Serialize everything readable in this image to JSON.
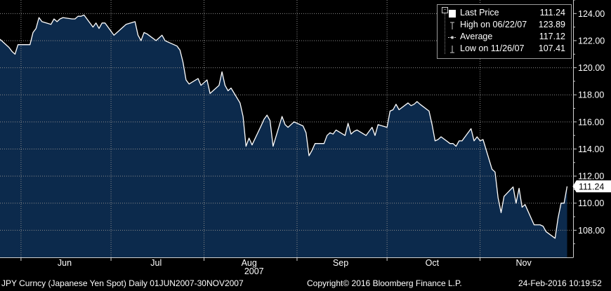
{
  "chart_data": {
    "type": "area",
    "title": "",
    "xlabel": "2007",
    "ylabel": "",
    "ylim": [
      106.0,
      125.0
    ],
    "y_ticks": [
      "108.00",
      "110.00",
      "112.00",
      "114.00",
      "116.00",
      "118.00",
      "120.00",
      "122.00",
      "124.00"
    ],
    "x_ticks": [
      {
        "label": "Jun",
        "date": "2007-06-01"
      },
      {
        "label": "Jul",
        "date": "2007-07-01"
      },
      {
        "label": "Aug",
        "date": "2007-08-01"
      },
      {
        "label": "Sep",
        "date": "2007-09-01"
      },
      {
        "label": "Oct",
        "date": "2007-10-01"
      },
      {
        "label": "Nov",
        "date": "2007-11-01"
      }
    ],
    "year_label": "2007",
    "grid": true,
    "last_price_tag": "111.24",
    "series": [
      {
        "name": "Last Price",
        "color": "#ffffff",
        "fill": "#0c2a4c",
        "points": [
          [
            "2007-05-25",
            122.1
          ],
          [
            "2007-05-28",
            121.5
          ],
          [
            "2007-05-29",
            121.2
          ],
          [
            "2007-05-30",
            121.0
          ],
          [
            "2007-05-31",
            121.7
          ],
          [
            "2007-06-01",
            121.7
          ],
          [
            "2007-06-04",
            121.7
          ],
          [
            "2007-06-05",
            122.6
          ],
          [
            "2007-06-06",
            122.9
          ],
          [
            "2007-06-07",
            123.7
          ],
          [
            "2007-06-08",
            123.4
          ],
          [
            "2007-06-11",
            123.2
          ],
          [
            "2007-06-12",
            123.6
          ],
          [
            "2007-06-13",
            123.4
          ],
          [
            "2007-06-14",
            123.6
          ],
          [
            "2007-06-15",
            123.7
          ],
          [
            "2007-06-18",
            123.6
          ],
          [
            "2007-06-19",
            123.6
          ],
          [
            "2007-06-20",
            123.8
          ],
          [
            "2007-06-21",
            123.8
          ],
          [
            "2007-06-22",
            123.89
          ],
          [
            "2007-06-25",
            123.0
          ],
          [
            "2007-06-26",
            123.3
          ],
          [
            "2007-06-27",
            122.9
          ],
          [
            "2007-06-28",
            123.3
          ],
          [
            "2007-06-29",
            123.3
          ],
          [
            "2007-07-02",
            122.4
          ],
          [
            "2007-07-03",
            122.6
          ],
          [
            "2007-07-04",
            122.8
          ],
          [
            "2007-07-05",
            123.0
          ],
          [
            "2007-07-06",
            123.2
          ],
          [
            "2007-07-09",
            123.4
          ],
          [
            "2007-07-10",
            122.4
          ],
          [
            "2007-07-11",
            122.0
          ],
          [
            "2007-07-12",
            122.6
          ],
          [
            "2007-07-13",
            122.5
          ],
          [
            "2007-07-16",
            122.0
          ],
          [
            "2007-07-17",
            122.2
          ],
          [
            "2007-07-18",
            122.4
          ],
          [
            "2007-07-19",
            122.0
          ],
          [
            "2007-07-20",
            121.9
          ],
          [
            "2007-07-23",
            121.6
          ],
          [
            "2007-07-24",
            121.3
          ],
          [
            "2007-07-25",
            120.4
          ],
          [
            "2007-07-26",
            119.1
          ],
          [
            "2007-07-27",
            118.8
          ],
          [
            "2007-07-30",
            119.2
          ],
          [
            "2007-07-31",
            118.7
          ],
          [
            "2007-08-01",
            118.9
          ],
          [
            "2007-08-02",
            119.1
          ],
          [
            "2007-08-03",
            118.1
          ],
          [
            "2007-08-06",
            118.7
          ],
          [
            "2007-08-07",
            119.7
          ],
          [
            "2007-08-08",
            118.7
          ],
          [
            "2007-08-09",
            118.3
          ],
          [
            "2007-08-10",
            118.5
          ],
          [
            "2007-08-13",
            117.4
          ],
          [
            "2007-08-14",
            116.4
          ],
          [
            "2007-08-15",
            114.2
          ],
          [
            "2007-08-16",
            114.8
          ],
          [
            "2007-08-17",
            114.3
          ],
          [
            "2007-08-20",
            115.7
          ],
          [
            "2007-08-21",
            116.2
          ],
          [
            "2007-08-22",
            116.5
          ],
          [
            "2007-08-23",
            116.1
          ],
          [
            "2007-08-24",
            114.2
          ],
          [
            "2007-08-27",
            116.4
          ],
          [
            "2007-08-28",
            115.8
          ],
          [
            "2007-08-29",
            115.6
          ],
          [
            "2007-08-30",
            115.8
          ],
          [
            "2007-08-31",
            116.0
          ],
          [
            "2007-09-03",
            115.7
          ],
          [
            "2007-09-04",
            115.2
          ],
          [
            "2007-09-05",
            113.5
          ],
          [
            "2007-09-06",
            113.9
          ],
          [
            "2007-09-07",
            114.4
          ],
          [
            "2007-09-10",
            114.4
          ],
          [
            "2007-09-11",
            115.0
          ],
          [
            "2007-09-12",
            115.2
          ],
          [
            "2007-09-13",
            115.1
          ],
          [
            "2007-09-14",
            115.4
          ],
          [
            "2007-09-17",
            115.0
          ],
          [
            "2007-09-18",
            115.9
          ],
          [
            "2007-09-19",
            115.1
          ],
          [
            "2007-09-20",
            115.3
          ],
          [
            "2007-09-21",
            115.4
          ],
          [
            "2007-09-24",
            115.0
          ],
          [
            "2007-09-25",
            115.3
          ],
          [
            "2007-09-26",
            115.6
          ],
          [
            "2007-09-27",
            115.0
          ],
          [
            "2007-09-28",
            115.8
          ],
          [
            "2007-10-01",
            115.6
          ],
          [
            "2007-10-02",
            116.8
          ],
          [
            "2007-10-03",
            116.9
          ],
          [
            "2007-10-04",
            117.3
          ],
          [
            "2007-10-05",
            116.9
          ],
          [
            "2007-10-08",
            117.4
          ],
          [
            "2007-10-09",
            117.2
          ],
          [
            "2007-10-10",
            117.3
          ],
          [
            "2007-10-11",
            117.5
          ],
          [
            "2007-10-12",
            117.3
          ],
          [
            "2007-10-15",
            116.8
          ],
          [
            "2007-10-16",
            115.8
          ],
          [
            "2007-10-17",
            114.6
          ],
          [
            "2007-10-18",
            114.7
          ],
          [
            "2007-10-19",
            114.9
          ],
          [
            "2007-10-22",
            114.4
          ],
          [
            "2007-10-23",
            114.4
          ],
          [
            "2007-10-24",
            114.2
          ],
          [
            "2007-10-25",
            114.6
          ],
          [
            "2007-10-26",
            114.6
          ],
          [
            "2007-10-29",
            115.5
          ],
          [
            "2007-10-30",
            114.6
          ],
          [
            "2007-10-31",
            114.9
          ],
          [
            "2007-11-01",
            114.6
          ],
          [
            "2007-11-02",
            114.7
          ],
          [
            "2007-11-05",
            112.5
          ],
          [
            "2007-11-06",
            112.3
          ],
          [
            "2007-11-07",
            110.4
          ],
          [
            "2007-11-08",
            109.3
          ],
          [
            "2007-11-09",
            110.5
          ],
          [
            "2007-11-12",
            111.2
          ],
          [
            "2007-11-13",
            110.0
          ],
          [
            "2007-11-14",
            111.1
          ],
          [
            "2007-11-15",
            109.7
          ],
          [
            "2007-11-16",
            109.9
          ],
          [
            "2007-11-19",
            108.4
          ],
          [
            "2007-11-20",
            108.4
          ],
          [
            "2007-11-21",
            108.4
          ],
          [
            "2007-11-22",
            108.3
          ],
          [
            "2007-11-23",
            107.9
          ],
          [
            "2007-11-26",
            107.41
          ],
          [
            "2007-11-27",
            108.9
          ],
          [
            "2007-11-28",
            110.0
          ],
          [
            "2007-11-29",
            110.0
          ],
          [
            "2007-11-30",
            111.24
          ]
        ]
      }
    ]
  },
  "legend": {
    "rows": [
      {
        "label": "Last Price",
        "value": "111.24"
      },
      {
        "label": "High on 06/22/07",
        "value": "123.89"
      },
      {
        "label": "Average",
        "value": "117.12"
      },
      {
        "label": "Low on 11/26/07",
        "value": "107.41"
      }
    ]
  },
  "footer": {
    "ticker": "JPY Curncy (Japanese Yen Spot)  Daily 01JUN2007-30NOV2007",
    "copyright": "Copyright© 2016 Bloomberg Finance L.P.",
    "timestamp": "24-Feb-2016 10:19:52"
  }
}
